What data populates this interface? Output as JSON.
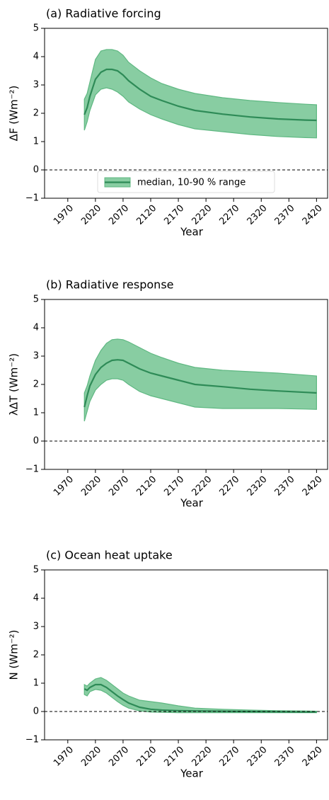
{
  "chart_data": [
    {
      "type": "band-line",
      "title": "(a) Radiative forcing",
      "ylabel": "ΔF (Wm⁻²)",
      "xlabel": "Year",
      "x": [
        2000,
        2005,
        2010,
        2020,
        2030,
        2040,
        2050,
        2060,
        2070,
        2080,
        2100,
        2120,
        2140,
        2170,
        2200,
        2250,
        2300,
        2350,
        2400,
        2420
      ],
      "median": [
        1.95,
        2.2,
        2.6,
        3.2,
        3.45,
        3.55,
        3.55,
        3.5,
        3.35,
        3.15,
        2.85,
        2.6,
        2.45,
        2.25,
        2.1,
        1.97,
        1.87,
        1.8,
        1.76,
        1.75
      ],
      "upper": [
        2.5,
        2.7,
        3.1,
        3.9,
        4.2,
        4.25,
        4.25,
        4.2,
        4.05,
        3.8,
        3.5,
        3.25,
        3.05,
        2.85,
        2.7,
        2.55,
        2.45,
        2.38,
        2.32,
        2.3
      ],
      "lower": [
        1.4,
        1.7,
        2.1,
        2.65,
        2.85,
        2.9,
        2.85,
        2.75,
        2.6,
        2.4,
        2.15,
        1.95,
        1.8,
        1.6,
        1.45,
        1.35,
        1.25,
        1.18,
        1.14,
        1.13
      ],
      "line_color": "#2e8b57",
      "band_color": "#88cda2",
      "legend": {
        "label": "median, 10-90 % range",
        "loc": "lower center"
      },
      "hline": 0,
      "xlim": [
        1928,
        2440
      ],
      "ylim": [
        -1,
        5
      ],
      "xticks": [
        1970,
        2020,
        2070,
        2120,
        2170,
        2220,
        2270,
        2320,
        2370,
        2420
      ],
      "yticks": [
        {
          "value": -1,
          "label": "−1"
        },
        0,
        1,
        2,
        3,
        4,
        5
      ]
    },
    {
      "type": "band-line",
      "title": "(b) Radiative response",
      "ylabel": "λΔT (Wm⁻²)",
      "xlabel": "Year",
      "x": [
        2000,
        2005,
        2010,
        2020,
        2030,
        2040,
        2050,
        2060,
        2070,
        2080,
        2100,
        2120,
        2140,
        2170,
        2200,
        2250,
        2300,
        2350,
        2400,
        2420
      ],
      "median": [
        1.2,
        1.6,
        1.95,
        2.35,
        2.6,
        2.75,
        2.85,
        2.87,
        2.85,
        2.75,
        2.55,
        2.4,
        2.3,
        2.15,
        2.0,
        1.92,
        1.83,
        1.77,
        1.72,
        1.7
      ],
      "upper": [
        1.7,
        1.95,
        2.3,
        2.85,
        3.2,
        3.45,
        3.58,
        3.6,
        3.58,
        3.5,
        3.3,
        3.1,
        2.95,
        2.75,
        2.6,
        2.5,
        2.45,
        2.4,
        2.33,
        2.3
      ],
      "lower": [
        0.7,
        1.05,
        1.4,
        1.8,
        2.0,
        2.15,
        2.2,
        2.2,
        2.15,
        2.0,
        1.75,
        1.6,
        1.5,
        1.35,
        1.2,
        1.15,
        1.15,
        1.15,
        1.13,
        1.12
      ],
      "line_color": "#2e8b57",
      "band_color": "#88cda2",
      "hline": 0,
      "xlim": [
        1928,
        2440
      ],
      "ylim": [
        -1,
        5
      ],
      "xticks": [
        1970,
        2020,
        2070,
        2120,
        2170,
        2220,
        2270,
        2320,
        2370,
        2420
      ],
      "yticks": [
        {
          "value": -1,
          "label": "−1"
        },
        0,
        1,
        2,
        3,
        4,
        5
      ]
    },
    {
      "type": "band-line",
      "title": "(c) Ocean heat uptake",
      "ylabel": "N (Wm⁻²)",
      "xlabel": "Year",
      "x": [
        2000,
        2005,
        2010,
        2020,
        2030,
        2040,
        2050,
        2060,
        2070,
        2080,
        2100,
        2120,
        2140,
        2170,
        2200,
        2250,
        2300,
        2350,
        2400,
        2420
      ],
      "median": [
        0.8,
        0.75,
        0.85,
        0.95,
        0.95,
        0.85,
        0.7,
        0.55,
        0.42,
        0.3,
        0.15,
        0.08,
        0.05,
        0.03,
        0.02,
        0.01,
        0.0,
        -0.01,
        -0.02,
        -0.02
      ],
      "upper": [
        0.95,
        0.9,
        1.0,
        1.15,
        1.2,
        1.1,
        0.95,
        0.8,
        0.65,
        0.55,
        0.4,
        0.35,
        0.3,
        0.2,
        0.12,
        0.08,
        0.05,
        0.03,
        0.02,
        0.01
      ],
      "lower": [
        0.6,
        0.55,
        0.7,
        0.78,
        0.75,
        0.65,
        0.5,
        0.35,
        0.22,
        0.12,
        0.02,
        -0.02,
        -0.03,
        -0.04,
        -0.04,
        -0.04,
        -0.04,
        -0.04,
        -0.04,
        -0.04
      ],
      "line_color": "#2e8b57",
      "band_color": "#88cda2",
      "hline": 0,
      "xlim": [
        1928,
        2440
      ],
      "ylim": [
        -1,
        5
      ],
      "xticks": [
        1970,
        2020,
        2070,
        2120,
        2170,
        2220,
        2270,
        2320,
        2370,
        2420
      ],
      "yticks": [
        {
          "value": -1,
          "label": "−1"
        },
        0,
        1,
        2,
        3,
        4,
        5
      ]
    }
  ]
}
